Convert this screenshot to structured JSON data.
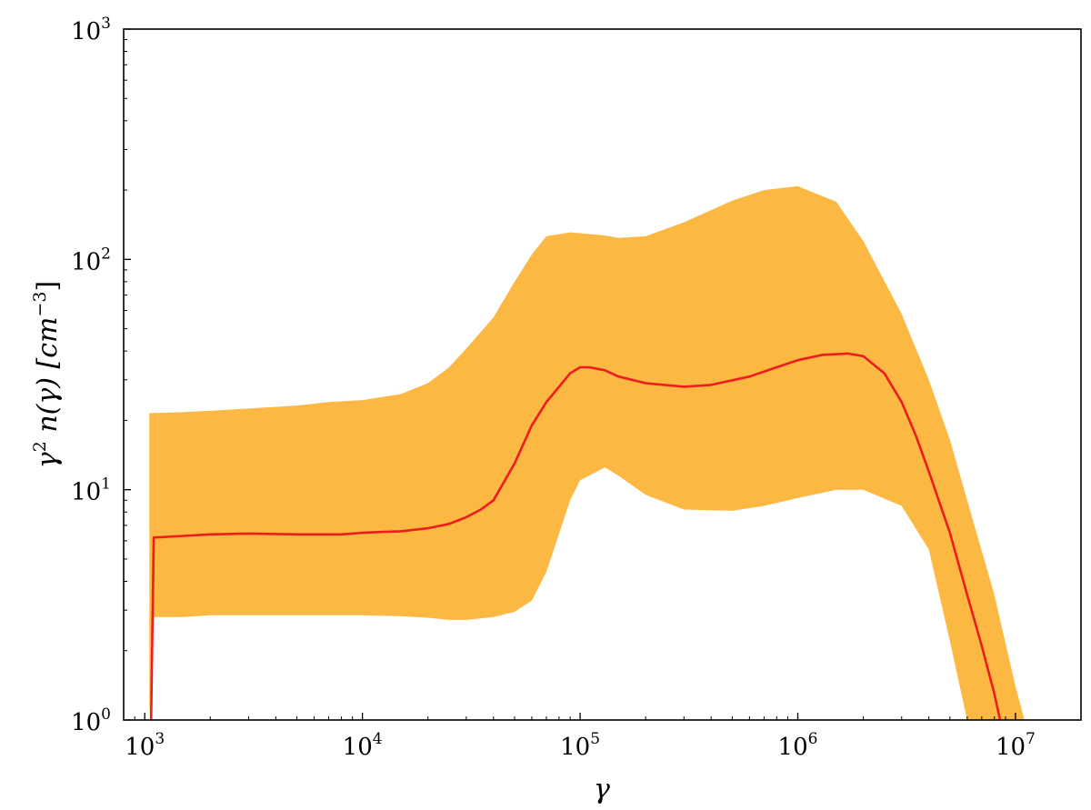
{
  "chart_data": {
    "type": "line",
    "title": "",
    "xlabel": "γ",
    "ylabel": {
      "base": "γ",
      "sup": "2",
      "func": " n(γ) [",
      "unit": "cm",
      "unit_sup": "−3",
      "close": "]"
    },
    "x_scale": "log",
    "y_scale": "log",
    "xlim": [
      800,
      20000000
    ],
    "ylim": [
      1,
      1000
    ],
    "x_ticks": [
      {
        "base": "10",
        "exp": "3",
        "value": 1000
      },
      {
        "base": "10",
        "exp": "4",
        "value": 10000
      },
      {
        "base": "10",
        "exp": "5",
        "value": 100000
      },
      {
        "base": "10",
        "exp": "6",
        "value": 1000000
      },
      {
        "base": "10",
        "exp": "7",
        "value": 10000000
      }
    ],
    "y_ticks": [
      {
        "base": "10",
        "exp": "0",
        "value": 1
      },
      {
        "base": "10",
        "exp": "1",
        "value": 10
      },
      {
        "base": "10",
        "exp": "2",
        "value": 100
      },
      {
        "base": "10",
        "exp": "3",
        "value": 1000
      }
    ],
    "grid": false,
    "series": [
      {
        "kind": "band",
        "color": "#fbb843",
        "x": [
          1050,
          1100,
          1500,
          2000,
          3000,
          5000,
          7000,
          10000,
          15000,
          20000,
          25000,
          30000,
          40000,
          50000,
          60000,
          70000,
          90000,
          100000,
          130000,
          150000,
          200000,
          300000,
          500000,
          700000,
          1000000,
          1500000,
          2000000,
          3000000,
          4000000,
          5000000,
          6000000,
          8000000,
          10000000,
          11000000
        ],
        "upper": [
          21.5,
          21.5,
          21.7,
          22.0,
          22.5,
          23.2,
          24.0,
          24.5,
          26.0,
          29.0,
          34.0,
          41.0,
          56.0,
          80.0,
          105.0,
          126.0,
          131.0,
          130.0,
          127.0,
          124.0,
          126.0,
          145.0,
          180.0,
          200.0,
          208.0,
          178.0,
          120.0,
          58.0,
          30.0,
          16.5,
          9.0,
          3.5,
          1.4,
          1.0
        ],
        "lower": [
          1.0,
          2.8,
          2.8,
          2.85,
          2.85,
          2.85,
          2.85,
          2.85,
          2.82,
          2.78,
          2.72,
          2.72,
          2.8,
          2.95,
          3.3,
          4.4,
          9.0,
          11.0,
          12.5,
          11.5,
          9.5,
          8.2,
          8.1,
          8.5,
          9.2,
          10.0,
          10.0,
          8.5,
          5.5,
          2.2,
          1.0,
          1.0,
          1.0,
          1.0
        ]
      },
      {
        "kind": "line",
        "color": "#ee1c1c",
        "x": [
          1070,
          1090,
          1100,
          1500,
          2000,
          3000,
          5000,
          8000,
          10000,
          12000,
          15000,
          20000,
          25000,
          30000,
          35000,
          40000,
          50000,
          60000,
          70000,
          80000,
          90000,
          100000,
          110000,
          130000,
          150000,
          200000,
          300000,
          400000,
          600000,
          800000,
          1000000,
          1300000,
          1700000,
          2000000,
          2500000,
          3000000,
          3500000,
          4000000,
          5000000,
          6000000,
          7000000,
          8000000,
          8500000
        ],
        "y": [
          1.0,
          3.5,
          6.2,
          6.3,
          6.4,
          6.45,
          6.4,
          6.4,
          6.5,
          6.55,
          6.6,
          6.8,
          7.1,
          7.6,
          8.2,
          9.0,
          13.0,
          19.0,
          24.0,
          28.0,
          32.0,
          34.0,
          34.0,
          33.0,
          31.0,
          29.0,
          28.0,
          28.5,
          31.0,
          34.0,
          36.5,
          38.5,
          39.0,
          38.0,
          32.0,
          24.0,
          17.0,
          12.0,
          6.5,
          3.5,
          2.1,
          1.3,
          1.0
        ]
      }
    ]
  }
}
